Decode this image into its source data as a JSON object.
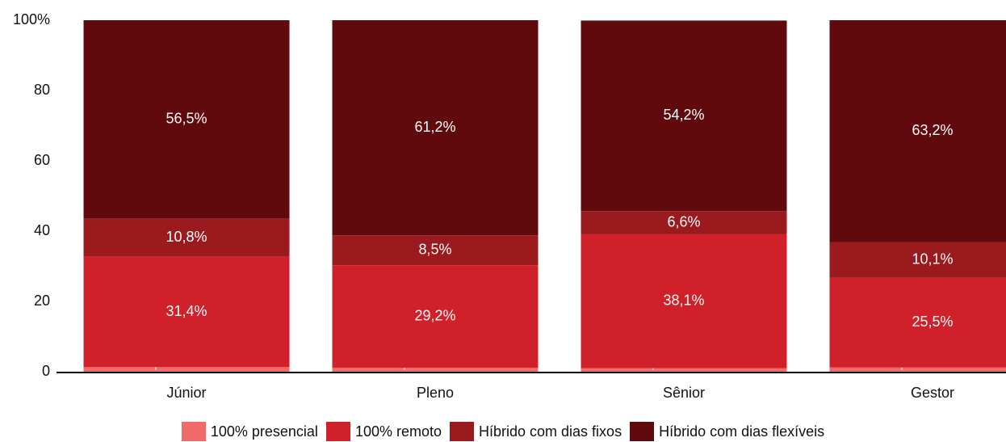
{
  "chart_data": {
    "type": "stacked_bar",
    "categories": [
      "Júnior",
      "Pleno",
      "Sênior",
      "Gestor"
    ],
    "series": [
      {
        "name": "100% presencial",
        "color": "#f06a6a",
        "values": [
          1.3,
          1.1,
          1.0,
          1.2
        ],
        "value_labels": [
          "1,3%",
          "1,1%",
          "1,0%",
          "1,2%"
        ]
      },
      {
        "name": "100% remoto",
        "color": "#d0202a",
        "values": [
          31.4,
          29.2,
          38.1,
          25.5
        ],
        "value_labels": [
          "31,4%",
          "29,2%",
          "38,1%",
          "25,5%"
        ]
      },
      {
        "name": "Híbrido com dias fixos",
        "color": "#9b1a1e",
        "values": [
          10.8,
          8.5,
          6.6,
          10.1
        ],
        "value_labels": [
          "10,8%",
          "8,5%",
          "6,6%",
          "10,1%"
        ]
      },
      {
        "name": "Híbrido com dias flexíveis",
        "color": "#600a0e",
        "values": [
          56.5,
          61.2,
          54.2,
          63.2
        ],
        "value_labels": [
          "56,5%",
          "61,2%",
          "54,2%",
          "63,2%"
        ]
      }
    ],
    "ylim": [
      0,
      100
    ],
    "yticks": [
      0,
      20,
      40,
      60,
      80,
      {
        "value": 100,
        "label": "100%"
      }
    ],
    "grid": false
  }
}
